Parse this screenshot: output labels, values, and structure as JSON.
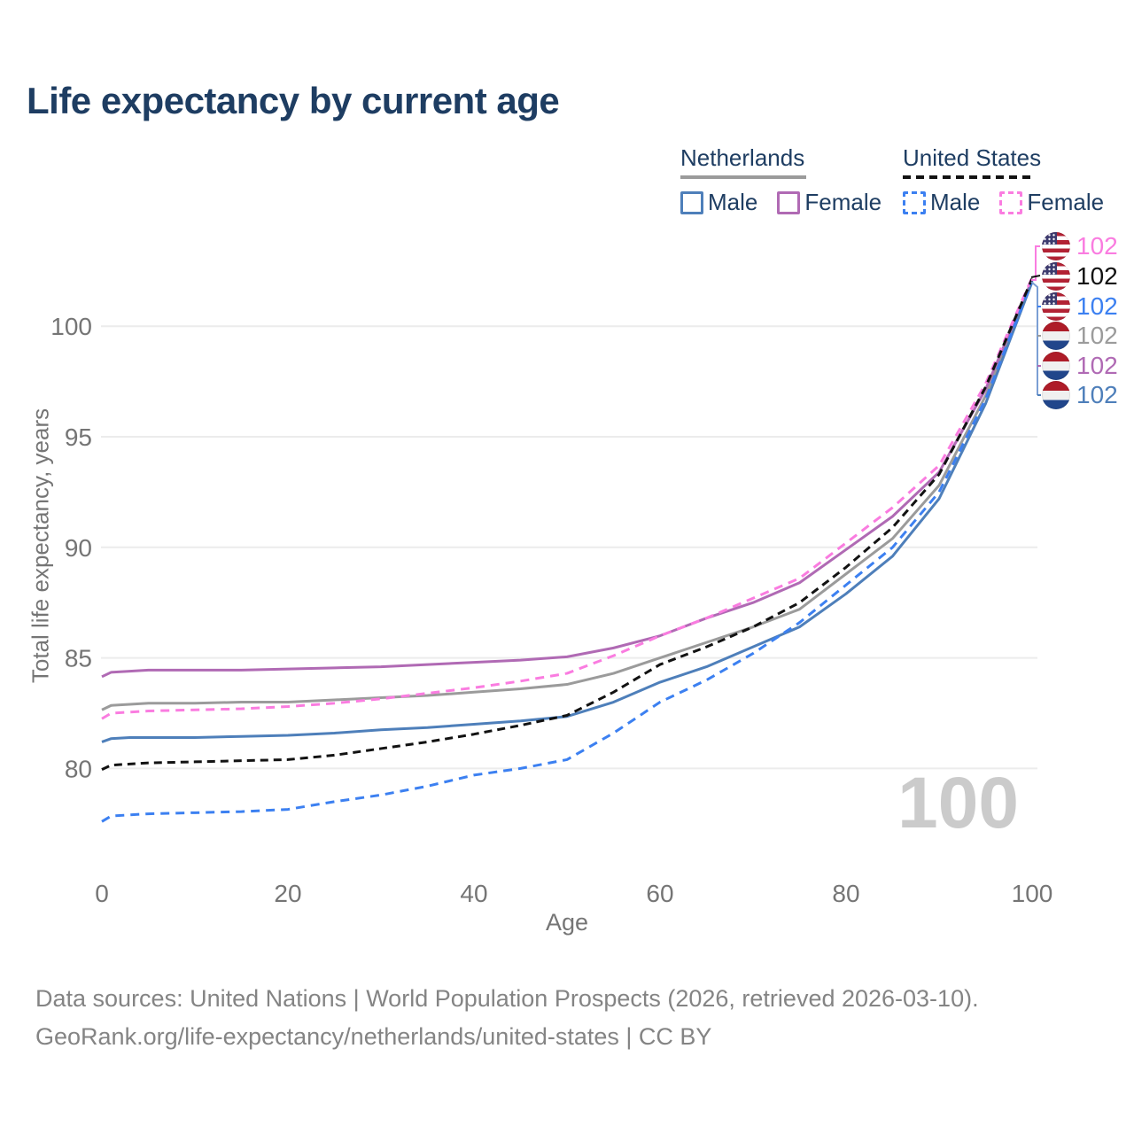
{
  "title": "Life expectancy by current age",
  "legend": {
    "groups": [
      {
        "title": "Netherlands",
        "line_style": "solid",
        "underline_color": "#9b9b9b",
        "items": [
          {
            "label": "Male",
            "color": "#4e7fba",
            "dashed": false
          },
          {
            "label": "Female",
            "color": "#b06ab4",
            "dashed": false
          }
        ]
      },
      {
        "title": "United States",
        "line_style": "dashed",
        "underline_color": "#121212",
        "items": [
          {
            "label": "Male",
            "color": "#3c80f1",
            "dashed": true
          },
          {
            "label": "Female",
            "color": "#fa7ce0",
            "dashed": true
          }
        ]
      }
    ]
  },
  "chart_data": {
    "type": "line",
    "title": "Life expectancy by current age",
    "xlabel": "Age",
    "ylabel": "Total life expectancy, years",
    "x_ticks": [
      0,
      20,
      40,
      60,
      80,
      100
    ],
    "y_ticks": [
      80,
      85,
      90,
      95,
      100
    ],
    "xlim": [
      0,
      100
    ],
    "ylim": [
      76,
      104.5
    ],
    "grid": "horizontal",
    "legend_position": "top-right",
    "hover_age_watermark": "100",
    "x": [
      0,
      1,
      3,
      5,
      10,
      15,
      20,
      25,
      30,
      35,
      40,
      45,
      50,
      55,
      60,
      65,
      70,
      75,
      80,
      85,
      90,
      95,
      100
    ],
    "series": [
      {
        "id": "nl-overall",
        "name": "Netherlands",
        "color": "#9b9b9b",
        "dash": null,
        "values": [
          82.65,
          82.85,
          82.9,
          82.95,
          82.95,
          83.0,
          83.0,
          83.1,
          83.2,
          83.3,
          83.45,
          83.6,
          83.8,
          84.3,
          85.0,
          85.7,
          86.4,
          87.2,
          88.8,
          90.4,
          92.8,
          96.85,
          102.05
        ]
      },
      {
        "id": "nl-female",
        "name": "Netherlands Female",
        "color": "#b06ab4",
        "dash": null,
        "values": [
          84.15,
          84.35,
          84.4,
          84.45,
          84.45,
          84.45,
          84.5,
          84.55,
          84.6,
          84.7,
          84.8,
          84.9,
          85.05,
          85.45,
          86.0,
          86.8,
          87.5,
          88.4,
          89.9,
          91.4,
          93.4,
          97.15,
          102.1
        ]
      },
      {
        "id": "nl-male",
        "name": "Netherlands Male",
        "color": "#4e7fba",
        "dash": null,
        "values": [
          81.2,
          81.35,
          81.4,
          81.4,
          81.4,
          81.45,
          81.5,
          81.6,
          81.75,
          81.85,
          82.0,
          82.15,
          82.35,
          83.0,
          83.9,
          84.6,
          85.5,
          86.4,
          87.9,
          89.6,
          92.2,
          96.5,
          102.0
        ]
      },
      {
        "id": "us-female",
        "name": "United States Female",
        "color": "#fa7ce0",
        "dash": "10 7",
        "values": [
          82.25,
          82.5,
          82.55,
          82.6,
          82.65,
          82.7,
          82.8,
          82.95,
          83.15,
          83.4,
          83.65,
          83.95,
          84.3,
          85.1,
          86.0,
          86.8,
          87.7,
          88.6,
          90.2,
          91.8,
          93.7,
          97.4,
          102.2
        ]
      },
      {
        "id": "us-male",
        "name": "United States Male",
        "color": "#3c80f1",
        "dash": "10 7",
        "values": [
          77.6,
          77.85,
          77.9,
          77.95,
          78.0,
          78.05,
          78.15,
          78.5,
          78.8,
          79.2,
          79.7,
          80.0,
          80.4,
          81.6,
          83.0,
          84.0,
          85.2,
          86.6,
          88.3,
          90.0,
          92.5,
          96.7,
          102.05
        ]
      },
      {
        "id": "us-overall",
        "name": "United States",
        "color": "#121212",
        "dash": "9 6",
        "values": [
          79.95,
          80.15,
          80.2,
          80.25,
          80.3,
          80.35,
          80.4,
          80.6,
          80.9,
          81.2,
          81.55,
          81.95,
          82.4,
          83.45,
          84.7,
          85.5,
          86.4,
          87.5,
          89.1,
          90.9,
          93.3,
          97.25,
          102.15
        ]
      }
    ],
    "end_labels": [
      {
        "country": "us",
        "series": "United States Female",
        "value": "102",
        "color": "#fa7ce0"
      },
      {
        "country": "us",
        "series": "United States",
        "value": "102",
        "color": "#121212"
      },
      {
        "country": "us",
        "series": "United States Male",
        "value": "102",
        "color": "#3c80f1"
      },
      {
        "country": "nl",
        "series": "Netherlands",
        "value": "102",
        "color": "#9b9b9b"
      },
      {
        "country": "nl",
        "series": "Netherlands Female",
        "value": "102",
        "color": "#b06ab4"
      },
      {
        "country": "nl",
        "series": "Netherlands Male",
        "value": "102",
        "color": "#4e7fba"
      }
    ]
  },
  "footer": {
    "line1": "Data sources: United Nations | World Population Prospects (2026, retrieved 2026-03-10).",
    "line2": "GeoRank.org/life-expectancy/netherlands/united-states | CC BY"
  }
}
